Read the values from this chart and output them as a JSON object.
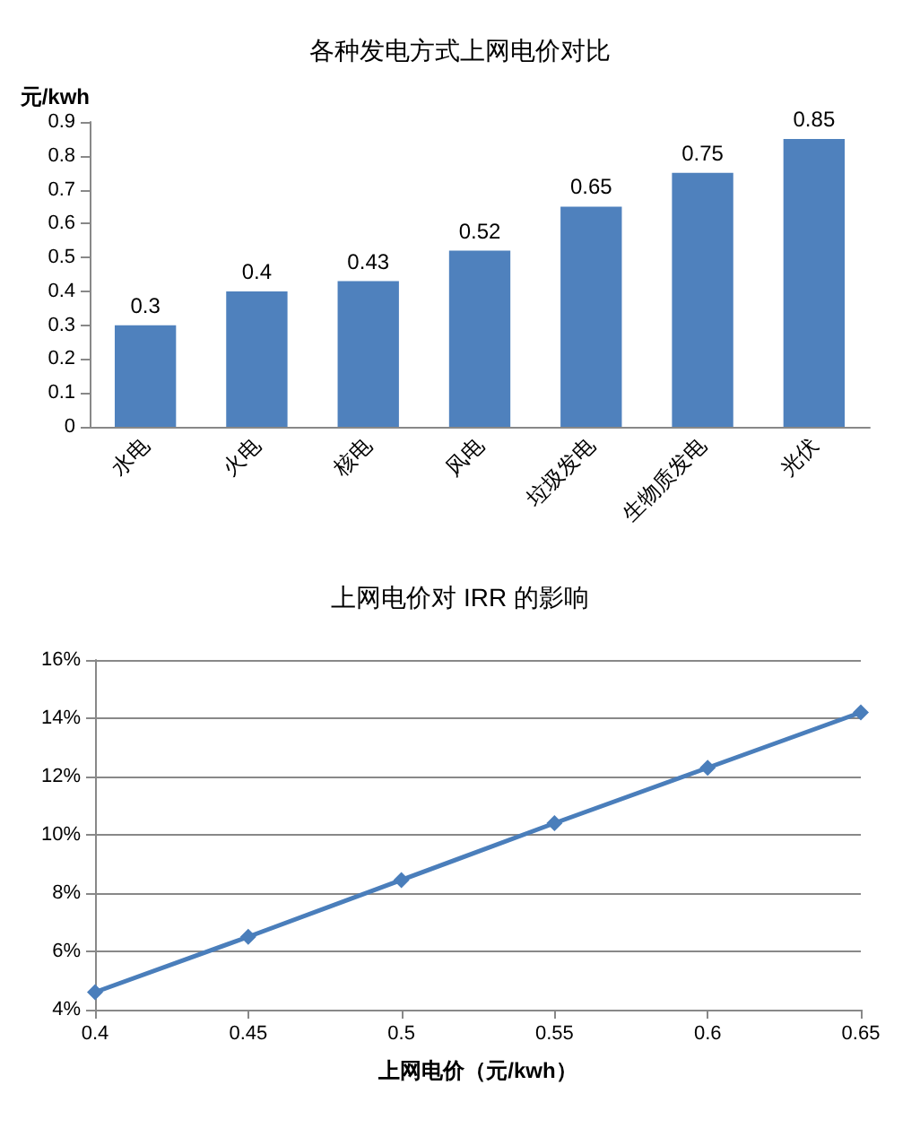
{
  "chart_data": [
    {
      "type": "bar",
      "title": "各种发电方式上网电价对比",
      "ylabel": "元/kwh",
      "categories": [
        "水电",
        "火电",
        "核电",
        "风电",
        "垃圾发电",
        "生物质发电",
        "光伏"
      ],
      "values": [
        0.3,
        0.4,
        0.43,
        0.52,
        0.65,
        0.75,
        0.85
      ],
      "color": "#4f81bd",
      "ylim": [
        0,
        0.9
      ],
      "yticks": [
        0,
        0.1,
        0.2,
        0.3,
        0.4,
        0.5,
        0.6,
        0.7,
        0.8,
        0.9
      ],
      "data_labels": true
    },
    {
      "type": "line",
      "title": "上网电价对 IRR 的影响",
      "xlabel": "上网电价（元/kwh）",
      "x": [
        0.4,
        0.45,
        0.5,
        0.55,
        0.6,
        0.65
      ],
      "values": [
        4.6,
        6.5,
        8.45,
        10.4,
        12.3,
        14.2
      ],
      "color": "#4a7ebb",
      "xlim": [
        0.4,
        0.65
      ],
      "xticks": [
        0.4,
        0.45,
        0.5,
        0.55,
        0.6,
        0.65
      ],
      "ylim": [
        4,
        16
      ],
      "yticks": [
        {
          "value": 4,
          "label": "4%"
        },
        {
          "value": 6,
          "label": "6%"
        },
        {
          "value": 8,
          "label": "8%"
        },
        {
          "value": 10,
          "label": "10%"
        },
        {
          "value": 12,
          "label": "12%"
        },
        {
          "value": 14,
          "label": "14%"
        },
        {
          "value": 16,
          "label": "16%"
        }
      ],
      "grid": "y",
      "marker": "diamond",
      "line_style": "solid"
    }
  ]
}
